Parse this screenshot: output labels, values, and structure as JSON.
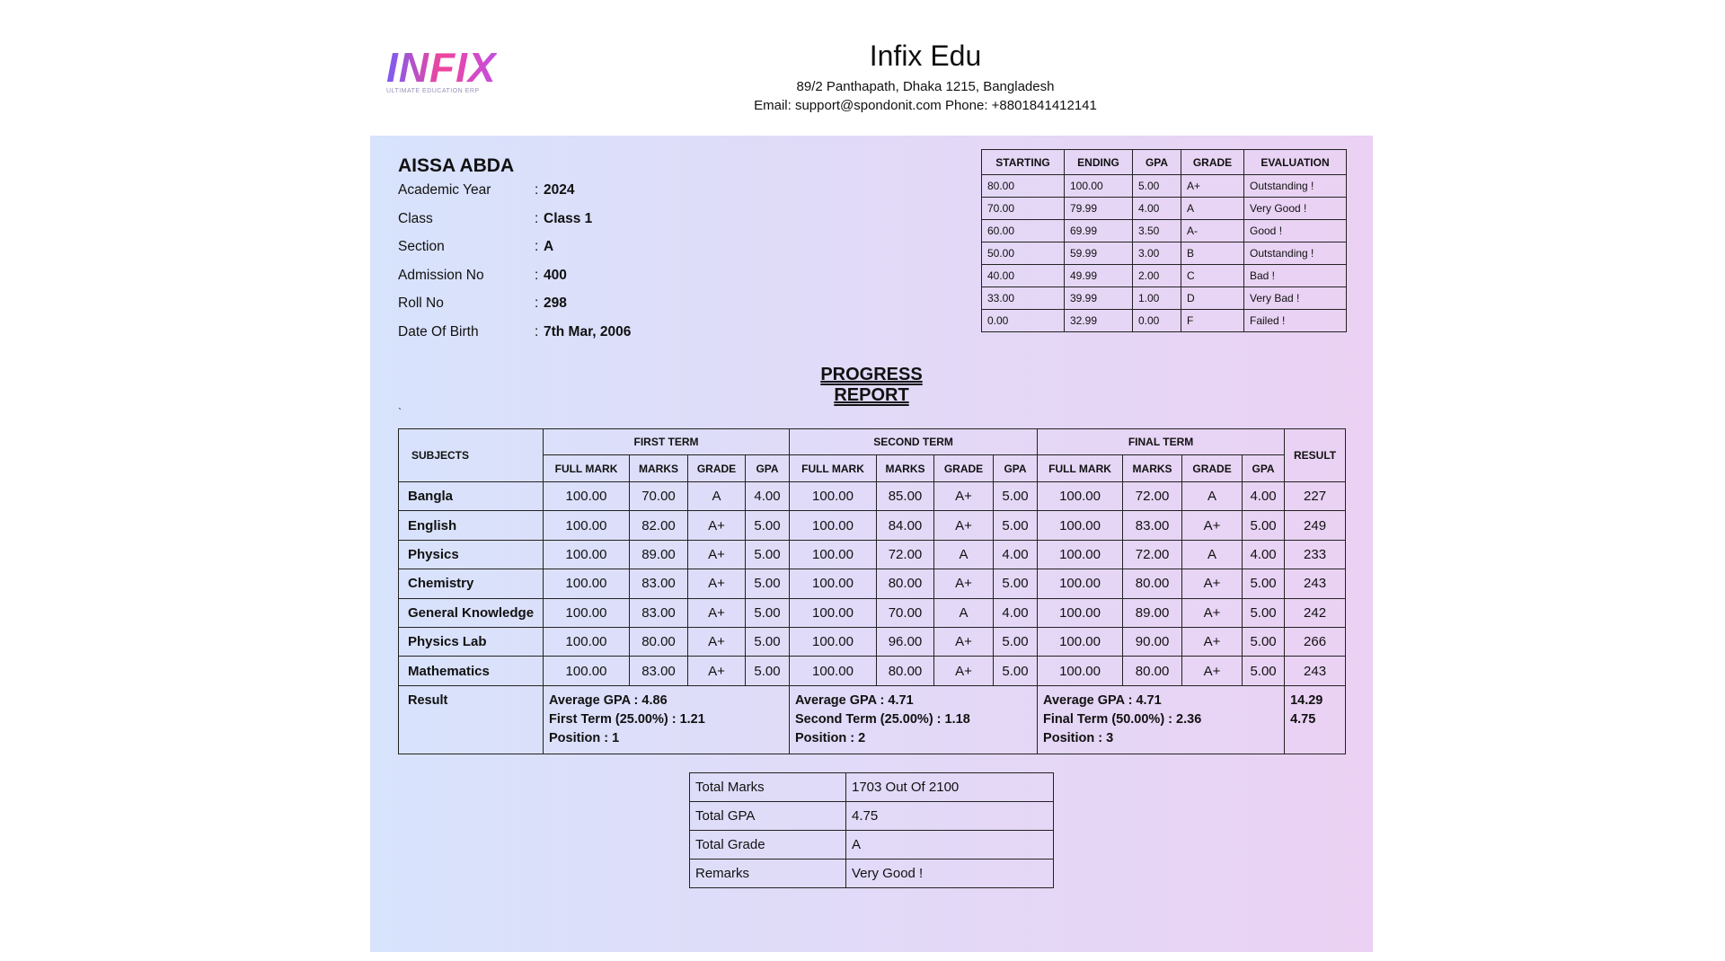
{
  "logo": {
    "text": "INFIX",
    "tagline": "ULTIMATE EDUCATION ERP"
  },
  "header": {
    "title": "Infix Edu",
    "address": "89/2 Panthapath, Dhaka 1215, Bangladesh",
    "contact": "Email: support@spondonit.com Phone: +8801841412141"
  },
  "student": {
    "name": "AISSA ABDA",
    "fields": [
      {
        "label": "Academic Year",
        "value": "2024"
      },
      {
        "label": "Class",
        "value": "Class 1"
      },
      {
        "label": "Section",
        "value": "A"
      },
      {
        "label": "Admission No",
        "value": "400"
      },
      {
        "label": "Roll No",
        "value": "298"
      },
      {
        "label": "Date Of Birth",
        "value": "7th Mar, 2006"
      }
    ],
    "separator": ":"
  },
  "grade_table": {
    "columns": [
      "STARTING",
      "ENDING",
      "GPA",
      "GRADE",
      "EVALUATION"
    ],
    "rows": [
      [
        "80.00",
        "100.00",
        "5.00",
        "A+",
        "Outstanding !"
      ],
      [
        "70.00",
        "79.99",
        "4.00",
        "A",
        "Very Good !"
      ],
      [
        "60.00",
        "69.99",
        "3.50",
        "A-",
        "Good !"
      ],
      [
        "50.00",
        "59.99",
        "3.00",
        "B",
        "Outstanding !"
      ],
      [
        "40.00",
        "49.99",
        "2.00",
        "C",
        "Bad !"
      ],
      [
        "33.00",
        "39.99",
        "1.00",
        "D",
        "Very Bad !"
      ],
      [
        "0.00",
        "32.99",
        "0.00",
        "F",
        "Failed !"
      ]
    ]
  },
  "report_title": "PROGRESS REPORT",
  "note": "`",
  "marks_table": {
    "subjects_header": "SUBJECTS",
    "terms": [
      "FIRST TERM",
      "SECOND TERM",
      "FINAL TERM"
    ],
    "sub_headers": [
      "FULL MARK",
      "MARKS",
      "GRADE",
      "GPA"
    ],
    "result_header": "RESULT",
    "rows": [
      {
        "subject": "Bangla",
        "terms": [
          [
            "100.00",
            "70.00",
            "A",
            "4.00"
          ],
          [
            "100.00",
            "85.00",
            "A+",
            "5.00"
          ],
          [
            "100.00",
            "72.00",
            "A",
            "4.00"
          ]
        ],
        "result": "227"
      },
      {
        "subject": "English",
        "terms": [
          [
            "100.00",
            "82.00",
            "A+",
            "5.00"
          ],
          [
            "100.00",
            "84.00",
            "A+",
            "5.00"
          ],
          [
            "100.00",
            "83.00",
            "A+",
            "5.00"
          ]
        ],
        "result": "249"
      },
      {
        "subject": "Physics",
        "terms": [
          [
            "100.00",
            "89.00",
            "A+",
            "5.00"
          ],
          [
            "100.00",
            "72.00",
            "A",
            "4.00"
          ],
          [
            "100.00",
            "72.00",
            "A",
            "4.00"
          ]
        ],
        "result": "233"
      },
      {
        "subject": "Chemistry",
        "terms": [
          [
            "100.00",
            "83.00",
            "A+",
            "5.00"
          ],
          [
            "100.00",
            "80.00",
            "A+",
            "5.00"
          ],
          [
            "100.00",
            "80.00",
            "A+",
            "5.00"
          ]
        ],
        "result": "243"
      },
      {
        "subject": "General Knowledge",
        "terms": [
          [
            "100.00",
            "83.00",
            "A+",
            "5.00"
          ],
          [
            "100.00",
            "70.00",
            "A",
            "4.00"
          ],
          [
            "100.00",
            "89.00",
            "A+",
            "5.00"
          ]
        ],
        "result": "242"
      },
      {
        "subject": "Physics Lab",
        "terms": [
          [
            "100.00",
            "80.00",
            "A+",
            "5.00"
          ],
          [
            "100.00",
            "96.00",
            "A+",
            "5.00"
          ],
          [
            "100.00",
            "90.00",
            "A+",
            "5.00"
          ]
        ],
        "result": "266"
      },
      {
        "subject": "Mathematics",
        "terms": [
          [
            "100.00",
            "83.00",
            "A+",
            "5.00"
          ],
          [
            "100.00",
            "80.00",
            "A+",
            "5.00"
          ],
          [
            "100.00",
            "80.00",
            "A+",
            "5.00"
          ]
        ],
        "result": "243"
      }
    ],
    "result_row": {
      "label": "Result",
      "terms": [
        [
          "Average GPA : 4.86",
          "First Term (25.00%) : 1.21",
          "Position : 1"
        ],
        [
          "Average GPA : 4.71",
          "Second Term (25.00%) : 1.18",
          "Position : 2"
        ],
        [
          "Average GPA : 4.71",
          "Final Term (50.00%) : 2.36",
          "Position : 3"
        ]
      ],
      "result": [
        "14.29",
        "4.75"
      ]
    }
  },
  "summary": [
    [
      "Total Marks",
      "1703 Out Of 2100"
    ],
    [
      "Total GPA",
      "4.75"
    ],
    [
      "Total Grade",
      "A"
    ],
    [
      "Remarks",
      "Very Good !"
    ]
  ]
}
